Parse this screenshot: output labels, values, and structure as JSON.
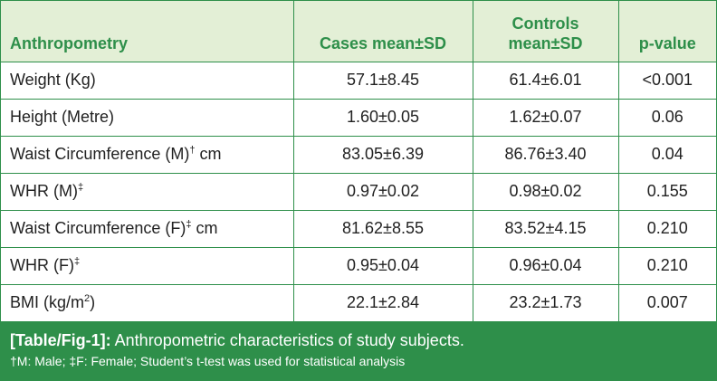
{
  "table": {
    "headers": [
      [
        "Anthropometry"
      ],
      [
        "Cases mean±SD"
      ],
      [
        "Controls",
        "mean±SD"
      ],
      [
        "p-value"
      ]
    ],
    "rows": [
      {
        "label": "Weight (Kg)",
        "sup": "",
        "suffix": "",
        "cases": "57.1±8.45",
        "controls": "61.4±6.01",
        "p": "<0.001"
      },
      {
        "label": "Height (Metre)",
        "sup": "",
        "suffix": "",
        "cases": "1.60±0.05",
        "controls": "1.62±0.07",
        "p": "0.06"
      },
      {
        "label": "Waist Circumference (M)",
        "sup": "†",
        "suffix": " cm",
        "cases": "83.05±6.39",
        "controls": "86.76±3.40",
        "p": "0.04"
      },
      {
        "label": "WHR (M)",
        "sup": "‡",
        "suffix": "",
        "cases": "0.97±0.02",
        "controls": "0.98±0.02",
        "p": "0.155"
      },
      {
        "label": "Waist Circumference (F)",
        "sup": "‡",
        "suffix": " cm",
        "cases": "81.62±8.55",
        "controls": "83.52±4.15",
        "p": "0.210"
      },
      {
        "label": "WHR (F)",
        "sup": "‡",
        "suffix": "",
        "cases": "0.95±0.04",
        "controls": "0.96±0.04",
        "p": "0.210"
      },
      {
        "label": "BMI (kg/m",
        "sup": "2",
        "suffix": ")",
        "cases": "22.1±2.84",
        "controls": "23.2±1.73",
        "p": "0.007"
      }
    ]
  },
  "caption": {
    "ref": "[Table/Fig-1]:",
    "title": " Anthropometric characteristics of study subjects.",
    "footnote": "†M: Male; ‡F: Female; Student’s t-test was used for statistical analysis"
  },
  "colors": {
    "accent": "#2e8f4a",
    "header_bg": "#e3efd6",
    "text": "#222222"
  }
}
